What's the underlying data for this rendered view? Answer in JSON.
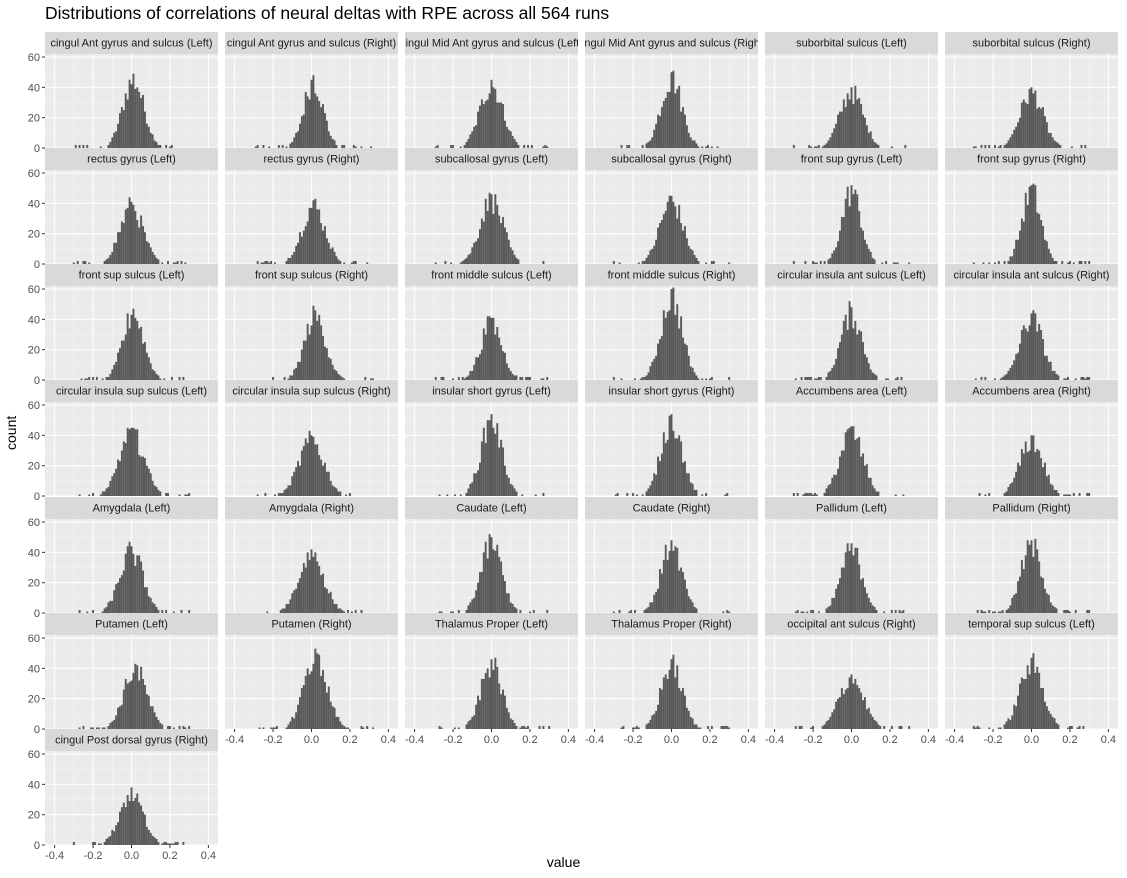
{
  "chart_data": {
    "type": "histogram",
    "title": "Distributions of correlations of neural deltas with RPE across all 564 runs",
    "xlabel": "value",
    "ylabel": "count",
    "xlim": [
      -0.45,
      0.45
    ],
    "ylim": [
      0,
      62
    ],
    "x_ticks": [
      -0.4,
      -0.2,
      0.0,
      0.2,
      0.4
    ],
    "x_tick_labels": [
      "-0.4",
      "-0.2",
      "0.0",
      "0.2",
      "0.4"
    ],
    "y_ticks": [
      0,
      20,
      40,
      60
    ],
    "y_tick_labels": [
      "0",
      "20",
      "40",
      "60"
    ],
    "bin_width": 0.01,
    "grid": true,
    "facets": [
      {
        "label": "cingul Ant gyrus and sulcus (Left)",
        "mean": 0.01,
        "sd": 0.055,
        "peak": 49
      },
      {
        "label": "cingul Ant gyrus and sulcus (Right)",
        "mean": 0.01,
        "sd": 0.05,
        "peak": 48
      },
      {
        "label": "cingul Mid Ant gyrus and sulcus (Left)",
        "mean": 0.0,
        "sd": 0.06,
        "peak": 45
      },
      {
        "label": "cingul Mid Ant gyrus and sulcus (Right)",
        "mean": 0.0,
        "sd": 0.055,
        "peak": 50
      },
      {
        "label": "suborbital sulcus (Left)",
        "mean": 0.0,
        "sd": 0.06,
        "peak": 40
      },
      {
        "label": "suborbital sulcus (Right)",
        "mean": 0.0,
        "sd": 0.06,
        "peak": 40
      },
      {
        "label": "rectus gyrus (Left)",
        "mean": 0.0,
        "sd": 0.06,
        "peak": 41
      },
      {
        "label": "rectus gyrus (Right)",
        "mean": 0.01,
        "sd": 0.06,
        "peak": 42
      },
      {
        "label": "subcallosal gyrus (Left)",
        "mean": 0.0,
        "sd": 0.06,
        "peak": 46
      },
      {
        "label": "subcallosal gyrus (Right)",
        "mean": 0.0,
        "sd": 0.06,
        "peak": 45
      },
      {
        "label": "front sup gyrus (Left)",
        "mean": 0.0,
        "sd": 0.05,
        "peak": 52
      },
      {
        "label": "front sup gyrus (Right)",
        "mean": 0.0,
        "sd": 0.05,
        "peak": 52
      },
      {
        "label": "front sup sulcus (Left)",
        "mean": 0.01,
        "sd": 0.055,
        "peak": 47
      },
      {
        "label": "front sup sulcus (Right)",
        "mean": 0.02,
        "sd": 0.055,
        "peak": 46
      },
      {
        "label": "front middle sulcus (Left)",
        "mean": 0.0,
        "sd": 0.055,
        "peak": 41
      },
      {
        "label": "front middle sulcus (Right)",
        "mean": 0.0,
        "sd": 0.055,
        "peak": 60
      },
      {
        "label": "circular insula ant sulcus (Left)",
        "mean": 0.0,
        "sd": 0.055,
        "peak": 48
      },
      {
        "label": "circular insula ant sulcus (Right)",
        "mean": 0.0,
        "sd": 0.06,
        "peak": 44
      },
      {
        "label": "circular insula sup sulcus (Left)",
        "mean": 0.0,
        "sd": 0.065,
        "peak": 45
      },
      {
        "label": "circular insula sup sulcus (Right)",
        "mean": 0.0,
        "sd": 0.065,
        "peak": 40
      },
      {
        "label": "insular short gyrus (Left)",
        "mean": 0.0,
        "sd": 0.055,
        "peak": 54
      },
      {
        "label": "insular short gyrus (Right)",
        "mean": 0.0,
        "sd": 0.055,
        "peak": 54
      },
      {
        "label": "Accumbens area (Left)",
        "mean": 0.0,
        "sd": 0.06,
        "peak": 46
      },
      {
        "label": "Accumbens area (Right)",
        "mean": 0.0,
        "sd": 0.06,
        "peak": 40
      },
      {
        "label": "Amygdala (Left)",
        "mean": 0.0,
        "sd": 0.06,
        "peak": 44
      },
      {
        "label": "Amygdala (Right)",
        "mean": 0.0,
        "sd": 0.065,
        "peak": 42
      },
      {
        "label": "Caudate (Left)",
        "mean": 0.0,
        "sd": 0.055,
        "peak": 50
      },
      {
        "label": "Caudate (Right)",
        "mean": 0.0,
        "sd": 0.055,
        "peak": 48
      },
      {
        "label": "Pallidum (Left)",
        "mean": 0.0,
        "sd": 0.055,
        "peak": 46
      },
      {
        "label": "Pallidum (Right)",
        "mean": 0.0,
        "sd": 0.055,
        "peak": 48
      },
      {
        "label": "Putamen (Left)",
        "mean": 0.02,
        "sd": 0.06,
        "peak": 43
      },
      {
        "label": "Putamen (Right)",
        "mean": 0.02,
        "sd": 0.06,
        "peak": 53
      },
      {
        "label": "Thalamus Proper (Left)",
        "mean": 0.0,
        "sd": 0.055,
        "peak": 46
      },
      {
        "label": "Thalamus Proper (Right)",
        "mean": 0.0,
        "sd": 0.055,
        "peak": 46
      },
      {
        "label": "occipital ant sulcus (Right)",
        "mean": 0.0,
        "sd": 0.065,
        "peak": 36
      },
      {
        "label": "temporal sup sulcus (Left)",
        "mean": 0.0,
        "sd": 0.06,
        "peak": 47
      },
      {
        "label": "cingul Post dorsal gyrus (Right)",
        "mean": 0.0,
        "sd": 0.06,
        "peak": 38
      }
    ]
  }
}
